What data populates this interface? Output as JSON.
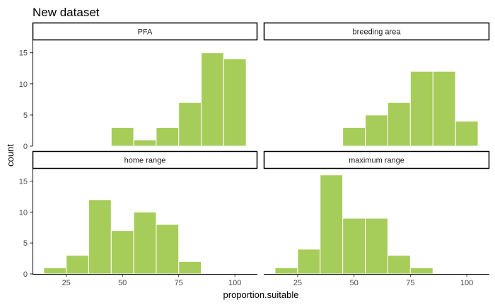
{
  "chart_data": {
    "type": "bar",
    "title": "New dataset",
    "xlabel": "proportion.suitable",
    "ylabel": "count",
    "xlim": [
      10,
      110
    ],
    "ylim": [
      0,
      17
    ],
    "x_ticks": [
      25,
      50,
      75,
      100
    ],
    "y_ticks": [
      0,
      5,
      10,
      15
    ],
    "bin_width": 10,
    "bar_color": "#a6cd5a",
    "bar_edge_color": "#ffffff",
    "strip_border_color": "#000000",
    "panels": [
      {
        "name": "PFA",
        "bins": [
          {
            "center": 50,
            "count": 3
          },
          {
            "center": 60,
            "count": 1
          },
          {
            "center": 70,
            "count": 3
          },
          {
            "center": 80,
            "count": 7
          },
          {
            "center": 90,
            "count": 15
          },
          {
            "center": 100,
            "count": 14
          }
        ]
      },
      {
        "name": "breeding area",
        "bins": [
          {
            "center": 50,
            "count": 3
          },
          {
            "center": 60,
            "count": 5
          },
          {
            "center": 70,
            "count": 7
          },
          {
            "center": 80,
            "count": 12
          },
          {
            "center": 90,
            "count": 12
          },
          {
            "center": 100,
            "count": 4
          }
        ]
      },
      {
        "name": "home range",
        "bins": [
          {
            "center": 20,
            "count": 1
          },
          {
            "center": 30,
            "count": 3
          },
          {
            "center": 40,
            "count": 12
          },
          {
            "center": 50,
            "count": 7
          },
          {
            "center": 60,
            "count": 10
          },
          {
            "center": 70,
            "count": 8
          },
          {
            "center": 80,
            "count": 2
          }
        ]
      },
      {
        "name": "maximum range",
        "bins": [
          {
            "center": 20,
            "count": 1
          },
          {
            "center": 30,
            "count": 4
          },
          {
            "center": 40,
            "count": 16
          },
          {
            "center": 50,
            "count": 9
          },
          {
            "center": 60,
            "count": 9
          },
          {
            "center": 70,
            "count": 3
          },
          {
            "center": 80,
            "count": 1
          }
        ]
      }
    ]
  }
}
